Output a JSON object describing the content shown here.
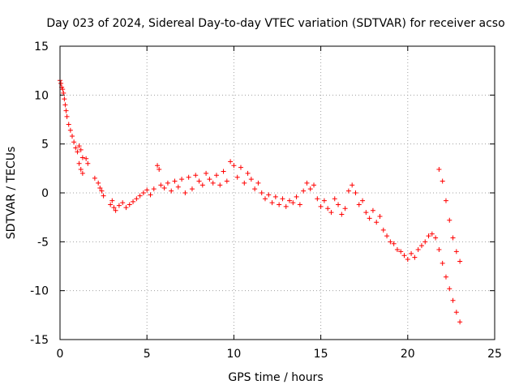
{
  "chart_data": {
    "type": "scatter",
    "title": "Day 023 of 2024, Sidereal Day-to-day VTEC variation (SDTVAR) for receiver acso",
    "xlabel": "GPS time / hours",
    "ylabel": "SDTVAR / TECUs",
    "xlim": [
      0,
      25
    ],
    "ylim": [
      -15,
      15
    ],
    "xticks": [
      0,
      5,
      10,
      15,
      20,
      25
    ],
    "yticks": [
      -15,
      -10,
      -5,
      0,
      5,
      10,
      15
    ],
    "xtick_labels": [
      "0",
      "5",
      "10",
      "15",
      "20",
      "25"
    ],
    "ytick_labels": [
      "-15",
      "-10",
      "-5",
      "0",
      "5",
      "10",
      "15"
    ],
    "grid": true,
    "marker": "+",
    "color": "#ff0000",
    "series": [
      {
        "name": "SDTVAR",
        "points": [
          [
            0.0,
            11.5
          ],
          [
            0.05,
            11.2
          ],
          [
            0.1,
            10.8
          ],
          [
            0.15,
            10.6
          ],
          [
            0.2,
            10.2
          ],
          [
            0.25,
            9.6
          ],
          [
            0.3,
            9.0
          ],
          [
            0.35,
            8.4
          ],
          [
            0.4,
            7.8
          ],
          [
            0.5,
            7.0
          ],
          [
            0.6,
            6.4
          ],
          [
            0.7,
            5.8
          ],
          [
            0.8,
            5.2
          ],
          [
            0.9,
            4.6
          ],
          [
            1.0,
            4.2
          ],
          [
            1.1,
            4.8
          ],
          [
            1.2,
            4.4
          ],
          [
            1.3,
            3.6
          ],
          [
            1.1,
            3.0
          ],
          [
            1.2,
            2.4
          ],
          [
            1.3,
            2.0
          ],
          [
            1.5,
            3.5
          ],
          [
            1.6,
            3.0
          ],
          [
            2.0,
            1.5
          ],
          [
            2.2,
            1.0
          ],
          [
            2.3,
            0.5
          ],
          [
            2.4,
            0.2
          ],
          [
            2.5,
            -0.3
          ],
          [
            2.9,
            -1.2
          ],
          [
            3.0,
            -0.8
          ],
          [
            3.1,
            -1.5
          ],
          [
            3.2,
            -1.8
          ],
          [
            3.4,
            -1.3
          ],
          [
            3.6,
            -1.0
          ],
          [
            3.8,
            -1.5
          ],
          [
            4.0,
            -1.2
          ],
          [
            4.2,
            -0.9
          ],
          [
            4.4,
            -0.6
          ],
          [
            4.6,
            -0.3
          ],
          [
            4.8,
            0.0
          ],
          [
            5.0,
            0.3
          ],
          [
            5.2,
            -0.2
          ],
          [
            5.4,
            0.4
          ],
          [
            5.6,
            2.8
          ],
          [
            5.7,
            2.4
          ],
          [
            5.8,
            0.8
          ],
          [
            6.0,
            0.5
          ],
          [
            6.2,
            1.0
          ],
          [
            6.4,
            0.2
          ],
          [
            6.6,
            1.2
          ],
          [
            6.8,
            0.6
          ],
          [
            7.0,
            1.4
          ],
          [
            7.2,
            0.0
          ],
          [
            7.4,
            1.6
          ],
          [
            7.6,
            0.4
          ],
          [
            7.8,
            1.8
          ],
          [
            8.0,
            1.2
          ],
          [
            8.2,
            0.8
          ],
          [
            8.4,
            2.0
          ],
          [
            8.6,
            1.4
          ],
          [
            8.8,
            1.0
          ],
          [
            9.0,
            1.8
          ],
          [
            9.2,
            0.8
          ],
          [
            9.4,
            2.2
          ],
          [
            9.6,
            1.2
          ],
          [
            9.8,
            3.2
          ],
          [
            10.0,
            2.8
          ],
          [
            10.2,
            1.6
          ],
          [
            10.4,
            2.6
          ],
          [
            10.6,
            1.0
          ],
          [
            10.8,
            2.0
          ],
          [
            11.0,
            1.4
          ],
          [
            11.2,
            0.4
          ],
          [
            11.4,
            1.0
          ],
          [
            11.6,
            0.0
          ],
          [
            11.8,
            -0.6
          ],
          [
            12.0,
            -0.2
          ],
          [
            12.2,
            -1.0
          ],
          [
            12.4,
            -0.4
          ],
          [
            12.6,
            -1.2
          ],
          [
            12.8,
            -0.6
          ],
          [
            13.0,
            -1.4
          ],
          [
            13.2,
            -0.8
          ],
          [
            13.4,
            -1.0
          ],
          [
            13.6,
            -0.4
          ],
          [
            13.8,
            -1.2
          ],
          [
            14.0,
            0.2
          ],
          [
            14.2,
            1.0
          ],
          [
            14.4,
            0.4
          ],
          [
            14.6,
            0.8
          ],
          [
            14.8,
            -0.6
          ],
          [
            15.0,
            -1.4
          ],
          [
            15.2,
            -0.8
          ],
          [
            15.4,
            -1.6
          ],
          [
            15.6,
            -2.0
          ],
          [
            15.8,
            -0.6
          ],
          [
            16.0,
            -1.2
          ],
          [
            16.2,
            -2.2
          ],
          [
            16.4,
            -1.6
          ],
          [
            16.6,
            0.2
          ],
          [
            16.8,
            0.8
          ],
          [
            17.0,
            0.0
          ],
          [
            17.2,
            -1.2
          ],
          [
            17.4,
            -0.8
          ],
          [
            17.6,
            -2.0
          ],
          [
            17.8,
            -2.6
          ],
          [
            18.0,
            -1.8
          ],
          [
            18.2,
            -3.0
          ],
          [
            18.4,
            -2.4
          ],
          [
            18.6,
            -3.8
          ],
          [
            18.8,
            -4.4
          ],
          [
            19.0,
            -5.0
          ],
          [
            19.2,
            -5.2
          ],
          [
            19.4,
            -5.8
          ],
          [
            19.6,
            -6.0
          ],
          [
            19.8,
            -6.4
          ],
          [
            20.0,
            -6.8
          ],
          [
            20.2,
            -6.2
          ],
          [
            20.4,
            -6.6
          ],
          [
            20.6,
            -5.8
          ],
          [
            20.8,
            -5.4
          ],
          [
            21.0,
            -5.0
          ],
          [
            21.2,
            -4.4
          ],
          [
            21.4,
            -4.2
          ],
          [
            21.6,
            -4.6
          ],
          [
            21.8,
            -5.8
          ],
          [
            22.0,
            -7.2
          ],
          [
            22.2,
            -8.6
          ],
          [
            22.4,
            -9.8
          ],
          [
            22.6,
            -11.0
          ],
          [
            22.8,
            -12.2
          ],
          [
            23.0,
            -13.2
          ],
          [
            21.8,
            2.4
          ],
          [
            22.0,
            1.2
          ],
          [
            22.2,
            -0.8
          ],
          [
            22.4,
            -2.8
          ],
          [
            22.6,
            -4.6
          ],
          [
            22.8,
            -6.0
          ],
          [
            23.0,
            -7.0
          ]
        ]
      }
    ]
  }
}
